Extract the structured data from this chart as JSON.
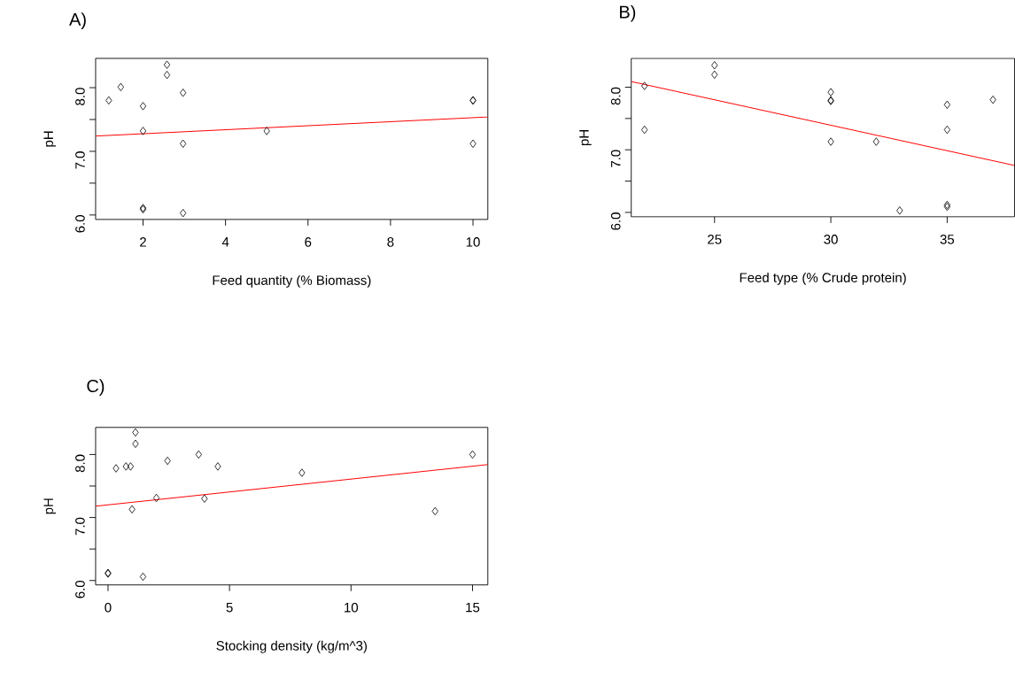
{
  "chart_data": [
    {
      "type": "scatter",
      "title": "A)",
      "xlabel": "Feed quantity (% Biomass)",
      "ylabel": "pH",
      "xlim": [
        0.85,
        10.36
      ],
      "ylim": [
        5.93,
        8.46
      ],
      "xticks": [
        2,
        4,
        6,
        8,
        10
      ],
      "yticks": [
        {
          "value": 6,
          "label": "6.0"
        },
        {
          "value": 6.5,
          "label": null
        },
        {
          "value": 7,
          "label": "7.0"
        },
        {
          "value": 7.5,
          "label": null
        },
        {
          "value": 8,
          "label": "8.0"
        }
      ],
      "marker": "diamond",
      "series": [
        {
          "color": "#000000",
          "x": [
            1.17,
            1.46,
            2,
            2,
            2,
            2,
            2.58,
            2.58,
            2.97,
            2.97,
            2.97,
            5,
            10,
            10,
            10
          ],
          "values": [
            7.8,
            8.01,
            7.71,
            7.32,
            6.11,
            6.09,
            8.36,
            8.2,
            7.92,
            7.12,
            6.03,
            7.32,
            7.8,
            7.8,
            7.12
          ]
        },
        {
          "type": "line",
          "color": "#ff0000",
          "marker": "none",
          "x": [
            0.85,
            10.36
          ],
          "values": [
            7.24,
            7.54
          ]
        }
      ]
    },
    {
      "type": "scatter",
      "title": "B)",
      "xlabel": "Feed type (% Crude protein)",
      "ylabel": "pH",
      "xlim": [
        21.42,
        37.9
      ],
      "ylim": [
        5.93,
        8.46
      ],
      "xticks": [
        25,
        30,
        35
      ],
      "yticks": [
        {
          "value": 6,
          "label": "6.0"
        },
        {
          "value": 6.5,
          "label": null
        },
        {
          "value": 7,
          "label": "7.0"
        },
        {
          "value": 7.5,
          "label": null
        },
        {
          "value": 8,
          "label": "8.0"
        }
      ],
      "marker": "diamond",
      "series": [
        {
          "color": "#000000",
          "x": [
            21.99,
            21.99,
            25,
            25,
            30,
            30,
            30,
            30,
            31.95,
            32.96,
            35,
            35,
            35,
            35,
            36.97
          ],
          "values": [
            8.02,
            7.32,
            8.35,
            8.2,
            7.92,
            7.79,
            7.78,
            7.13,
            7.13,
            6.03,
            7.72,
            7.32,
            6.12,
            6.09,
            7.8
          ]
        },
        {
          "type": "line",
          "color": "#ff0000",
          "marker": "none",
          "x": [
            21.42,
            37.9
          ],
          "values": [
            8.09,
            6.75
          ]
        }
      ]
    },
    {
      "type": "scatter",
      "title": "C)",
      "xlabel": "Stocking density (kg/m^3)",
      "ylabel": "pH",
      "xlim": [
        -0.51,
        15.63
      ],
      "ylim": [
        5.93,
        8.43
      ],
      "xticks": [
        0,
        5,
        10,
        15
      ],
      "yticks": [
        {
          "value": 6,
          "label": "6.0"
        },
        {
          "value": 6.5,
          "label": null
        },
        {
          "value": 7,
          "label": "7.0"
        },
        {
          "value": 7.5,
          "label": null
        },
        {
          "value": 8,
          "label": "8.0"
        }
      ],
      "marker": "diamond",
      "series": [
        {
          "color": "#000000",
          "x": [
            0,
            0,
            0.33,
            0.74,
            0.93,
            0.99,
            1.13,
            1.13,
            1.44,
            1.99,
            2.45,
            3.73,
            3.97,
            4.52,
            7.98,
            13.46,
            15
          ],
          "values": [
            6.12,
            6.11,
            7.78,
            7.81,
            7.81,
            7.13,
            8.35,
            8.17,
            6.06,
            7.31,
            7.9,
            8.0,
            7.3,
            7.81,
            7.71,
            7.1,
            8.0
          ]
        },
        {
          "type": "line",
          "color": "#ff0000",
          "marker": "none",
          "x": [
            -0.51,
            15.63
          ],
          "values": [
            7.18,
            7.84
          ]
        }
      ]
    }
  ]
}
